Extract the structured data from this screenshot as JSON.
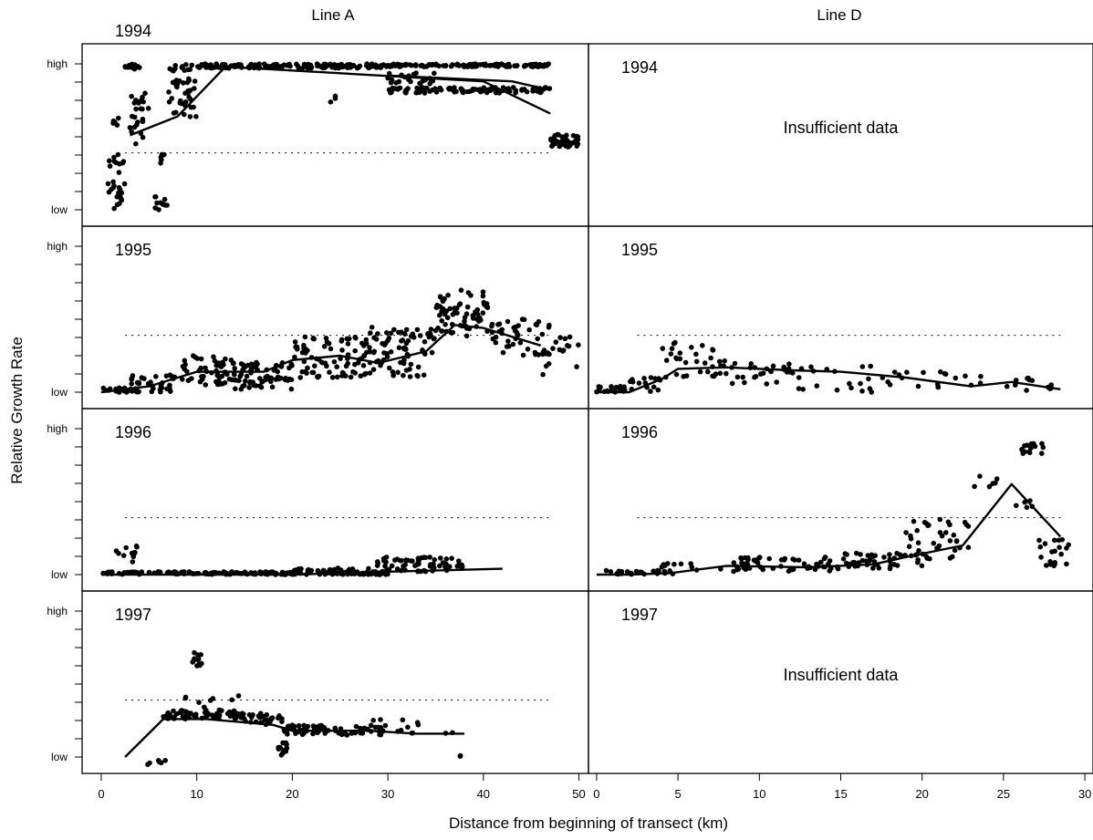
{
  "chart_data": {
    "type": "scatter",
    "column_titles": [
      "Line A",
      "Line D"
    ],
    "ylabel": "Relative Growth Rate",
    "xlabel": "Distance from beginning of transect (km)",
    "y_tick_labels": [
      "high",
      "low"
    ],
    "ylim": [
      0,
      1
    ],
    "reference_level": 0.39,
    "insufficient_text": "Insufficient data",
    "columns": [
      {
        "name": "Line A",
        "xlim": [
          -2,
          51
        ],
        "xticks": [
          0,
          10,
          20,
          30,
          40,
          50
        ]
      },
      {
        "name": "Line D",
        "xlim": [
          -0.5,
          30.5
        ],
        "xticks": [
          0,
          5,
          10,
          15,
          20,
          25,
          30
        ]
      }
    ],
    "panels": [
      {
        "year": "1994",
        "col": 0,
        "row": 0,
        "trend": [
          [
            3,
            0.51
          ],
          [
            8,
            0.64
          ],
          [
            13,
            0.98
          ],
          [
            40,
            0.88
          ],
          [
            47,
            0.66
          ]
        ],
        "trend2": [
          [
            30,
            0.92
          ],
          [
            43,
            0.88
          ],
          [
            47,
            0.82
          ]
        ],
        "clusters": [
          {
            "x": [
              0.5,
              2.5
            ],
            "y": [
              0,
              0.38
            ],
            "n": 30
          },
          {
            "x": [
              1,
              2
            ],
            "y": [
              0.58,
              0.68
            ],
            "n": 5
          },
          {
            "x": [
              2.5,
              4
            ],
            "y": [
              0.95,
              1.0
            ],
            "n": 15
          },
          {
            "x": [
              3,
              5
            ],
            "y": [
              0.45,
              0.8
            ],
            "n": 25
          },
          {
            "x": [
              5.5,
              7
            ],
            "y": [
              0,
              0.1
            ],
            "n": 12
          },
          {
            "x": [
              6,
              7
            ],
            "y": [
              0.3,
              0.38
            ],
            "n": 6
          },
          {
            "x": [
              7,
              10
            ],
            "y": [
              0.63,
              0.9
            ],
            "n": 35
          },
          {
            "x": [
              7,
              10
            ],
            "y": [
              0.95,
              1.0
            ],
            "n": 12
          },
          {
            "x": [
              10,
              30
            ],
            "y": [
              0.97,
              1.0
            ],
            "n": 150
          },
          {
            "x": [
              24,
              25
            ],
            "y": [
              0.72,
              0.78
            ],
            "n": 3
          },
          {
            "x": [
              30,
              47
            ],
            "y": [
              0.98,
              1.0
            ],
            "n": 120
          },
          {
            "x": [
              30,
              47
            ],
            "y": [
              0.8,
              0.84
            ],
            "n": 110
          },
          {
            "x": [
              30,
              35
            ],
            "y": [
              0.86,
              0.94
            ],
            "n": 25
          },
          {
            "x": [
              47,
              50
            ],
            "y": [
              0.43,
              0.52
            ],
            "n": 45
          }
        ]
      },
      {
        "year": "1995",
        "col": 0,
        "row": 1,
        "trend": [
          [
            0,
            0.0
          ],
          [
            5,
            0.04
          ],
          [
            10,
            0.14
          ],
          [
            17,
            0.14
          ],
          [
            20,
            0.22
          ],
          [
            25,
            0.25
          ],
          [
            29,
            0.2
          ],
          [
            34,
            0.28
          ],
          [
            37,
            0.46
          ],
          [
            40,
            0.44
          ],
          [
            46,
            0.32
          ]
        ],
        "clusters": [
          {
            "x": [
              0,
              3
            ],
            "y": [
              0,
              0.03
            ],
            "n": 15
          },
          {
            "x": [
              3,
              8
            ],
            "y": [
              0,
              0.12
            ],
            "n": 40
          },
          {
            "x": [
              8,
              14
            ],
            "y": [
              0.05,
              0.25
            ],
            "n": 60
          },
          {
            "x": [
              14,
              20
            ],
            "y": [
              0.02,
              0.22
            ],
            "n": 70
          },
          {
            "x": [
              20,
              28
            ],
            "y": [
              0.1,
              0.38
            ],
            "n": 80
          },
          {
            "x": [
              28,
              35
            ],
            "y": [
              0.1,
              0.45
            ],
            "n": 80
          },
          {
            "x": [
              35,
              41
            ],
            "y": [
              0.38,
              0.7
            ],
            "n": 70
          },
          {
            "x": [
              41,
              47
            ],
            "y": [
              0.25,
              0.5
            ],
            "n": 40
          },
          {
            "x": [
              46,
              50
            ],
            "y": [
              0.12,
              0.38
            ],
            "n": 20
          }
        ]
      },
      {
        "year": "1995",
        "col": 1,
        "row": 1,
        "trend": [
          [
            0,
            0.0
          ],
          [
            2,
            0.0
          ],
          [
            4,
            0.09
          ],
          [
            5,
            0.16
          ],
          [
            8,
            0.17
          ],
          [
            12,
            0.15
          ],
          [
            15,
            0.14
          ],
          [
            19,
            0.1
          ],
          [
            23,
            0.04
          ],
          [
            25.5,
            0.07
          ],
          [
            28.5,
            0.02
          ]
        ],
        "clusters": [
          {
            "x": [
              0,
              2
            ],
            "y": [
              0,
              0.04
            ],
            "n": 20
          },
          {
            "x": [
              2,
              4
            ],
            "y": [
              0,
              0.1
            ],
            "n": 15
          },
          {
            "x": [
              4,
              8
            ],
            "y": [
              0.1,
              0.35
            ],
            "n": 35
          },
          {
            "x": [
              8,
              12
            ],
            "y": [
              0.05,
              0.2
            ],
            "n": 25
          },
          {
            "x": [
              12,
              17
            ],
            "y": [
              0.0,
              0.18
            ],
            "n": 20
          },
          {
            "x": [
              17,
              25
            ],
            "y": [
              0.0,
              0.14
            ],
            "n": 20
          },
          {
            "x": [
              25,
              28
            ],
            "y": [
              0.0,
              0.1
            ],
            "n": 12
          }
        ]
      },
      {
        "year": "1996",
        "col": 0,
        "row": 2,
        "trend": [
          [
            0,
            0.0
          ],
          [
            20,
            0.0
          ],
          [
            30,
            0.02
          ],
          [
            42,
            0.04
          ]
        ],
        "clusters": [
          {
            "x": [
              0,
              30
            ],
            "y": [
              0,
              0.02
            ],
            "n": 180
          },
          {
            "x": [
              1,
              5
            ],
            "y": [
              0.05,
              0.2
            ],
            "n": 12
          },
          {
            "x": [
              20,
              30
            ],
            "y": [
              0.01,
              0.05
            ],
            "n": 30
          },
          {
            "x": [
              28,
              38
            ],
            "y": [
              0.02,
              0.12
            ],
            "n": 60
          }
        ]
      },
      {
        "year": "1996",
        "col": 1,
        "row": 2,
        "trend": [
          [
            0,
            0.0
          ],
          [
            2,
            0.0
          ],
          [
            4.5,
            0.01
          ],
          [
            8,
            0.06
          ],
          [
            13,
            0.05
          ],
          [
            17,
            0.07
          ],
          [
            19,
            0.12
          ],
          [
            22.5,
            0.2
          ],
          [
            25.5,
            0.62
          ],
          [
            28.5,
            0.26
          ]
        ],
        "clusters": [
          {
            "x": [
              0.5,
              4
            ],
            "y": [
              0,
              0.03
            ],
            "n": 20
          },
          {
            "x": [
              4,
              8
            ],
            "y": [
              0,
              0.08
            ],
            "n": 15
          },
          {
            "x": [
              8,
              15
            ],
            "y": [
              0.02,
              0.12
            ],
            "n": 55
          },
          {
            "x": [
              15,
              20
            ],
            "y": [
              0.04,
              0.15
            ],
            "n": 45
          },
          {
            "x": [
              19,
              23
            ],
            "y": [
              0.1,
              0.38
            ],
            "n": 40
          },
          {
            "x": [
              23,
              25
            ],
            "y": [
              0.6,
              0.68
            ],
            "n": 6
          },
          {
            "x": [
              26,
              27.5
            ],
            "y": [
              0.82,
              0.9
            ],
            "n": 15
          },
          {
            "x": [
              25.5,
              27
            ],
            "y": [
              0.45,
              0.52
            ],
            "n": 5
          },
          {
            "x": [
              27,
              29
            ],
            "y": [
              0.05,
              0.24
            ],
            "n": 20
          }
        ]
      },
      {
        "year": "1997",
        "col": 0,
        "row": 3,
        "trend": [
          [
            2.5,
            0.0
          ],
          [
            6.5,
            0.26
          ],
          [
            11,
            0.26
          ],
          [
            18,
            0.22
          ],
          [
            20,
            0.18
          ],
          [
            28,
            0.18
          ],
          [
            33,
            0.16
          ],
          [
            38,
            0.16
          ]
        ],
        "clusters": [
          {
            "x": [
              6.5,
              15
            ],
            "y": [
              0.26,
              0.32
            ],
            "n": 60
          },
          {
            "x": [
              8,
              15
            ],
            "y": [
              0.32,
              0.42
            ],
            "n": 10
          },
          {
            "x": [
              9.5,
              10.5
            ],
            "y": [
              0.62,
              0.72
            ],
            "n": 12
          },
          {
            "x": [
              15,
              19
            ],
            "y": [
              0.22,
              0.3
            ],
            "n": 25
          },
          {
            "x": [
              18.5,
              19.5
            ],
            "y": [
              0,
              0.1
            ],
            "n": 15
          },
          {
            "x": [
              19,
              30
            ],
            "y": [
              0.15,
              0.22
            ],
            "n": 70
          },
          {
            "x": [
              28,
              37
            ],
            "y": [
              0.15,
              0.28
            ],
            "n": 15
          },
          {
            "x": [
              4.5,
              7
            ],
            "y": [
              -0.06,
              -0.02
            ],
            "n": 6
          },
          {
            "x": [
              37.5,
              38.5
            ],
            "y": [
              0.0,
              0.04
            ],
            "n": 2
          }
        ]
      }
    ],
    "insufficient_panels": [
      {
        "year": "1994",
        "col": 1,
        "row": 0
      },
      {
        "year": "1997",
        "col": 1,
        "row": 3
      }
    ]
  }
}
